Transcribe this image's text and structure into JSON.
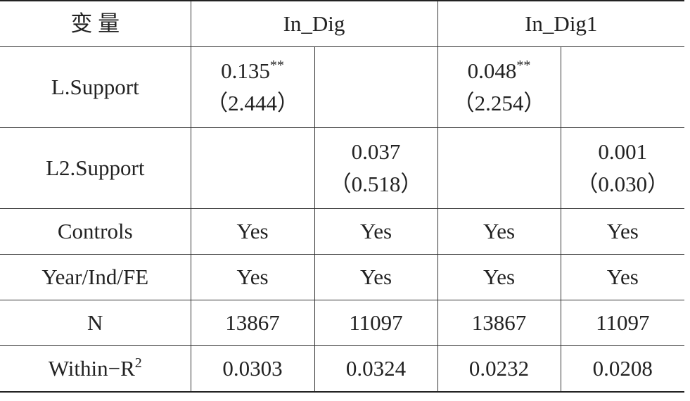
{
  "table": {
    "header": [
      "变 量",
      "In_Dig",
      "In_Dig1"
    ],
    "rows": [
      {
        "label": "L.Support",
        "cells": [
          {
            "coef": "0.135",
            "stars": "**",
            "t": "（2.444）"
          },
          null,
          {
            "coef": "0.048",
            "stars": "**",
            "t": "（2.254）"
          },
          null
        ]
      },
      {
        "label": "L2.Support",
        "cells": [
          null,
          {
            "coef": "0.037",
            "t": "（0.518）"
          },
          null,
          {
            "coef": "0.001",
            "t": "（0.030）"
          }
        ]
      },
      {
        "label": "Controls",
        "cells": [
          "Yes",
          "Yes",
          "Yes",
          "Yes"
        ]
      },
      {
        "label": "Year/Ind/FE",
        "cells": [
          "Yes",
          "Yes",
          "Yes",
          "Yes"
        ]
      },
      {
        "label": "N",
        "cells": [
          "13867",
          "11097",
          "13867",
          "11097"
        ]
      },
      {
        "label": "Within−R",
        "label_sup": "2",
        "cells": [
          "0.0303",
          "0.0324",
          "0.0232",
          "0.0208"
        ]
      }
    ]
  }
}
